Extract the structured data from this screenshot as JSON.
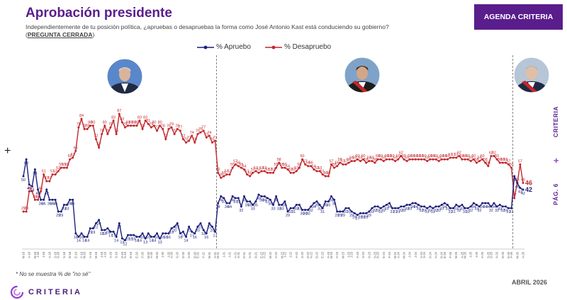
{
  "header": {
    "title": "Aprobación presidente",
    "subtitle": "Independientemente de tu posición política, ¿apruebas o desapruebas la forma como José Antonio Kast está conduciendo su gobierno?",
    "subtitle_tag": "PREGUNTA CERRADA"
  },
  "badge": {
    "label": "AGENDA CRITERIA"
  },
  "side": {
    "page": "PÁG. 6",
    "brand": "CRITERIA"
  },
  "footnote": "* No se muestra % de \"no sé\"",
  "date_label": "ABRIL 2026",
  "logo": {
    "text": "CRITERIA"
  },
  "colors": {
    "aprueba": "#1c1f7a",
    "desaprueba": "#c2272d",
    "brand": "#5a1d8c",
    "divider": "#666666"
  },
  "icons": {
    "left_plus": "plus-icon",
    "logo": "criteria-logo-icon",
    "portraits": [
      "portrait-1-icon",
      "portrait-2-icon",
      "portrait-3-icon"
    ]
  },
  "chart_data": {
    "type": "line",
    "title": "",
    "xlabel": "",
    "ylabel": "",
    "ylim": [
      0,
      100
    ],
    "grid": false,
    "legend_position": "top-center",
    "period_breaks_after_index": [
      66,
      168
    ],
    "series": [
      {
        "name": "% Apruebo",
        "color": "#1c1f7a",
        "values": [
          50,
          60,
          45,
          44,
          54,
          42,
          36,
          36,
          42,
          36,
          36,
          36,
          29,
          29,
          33,
          33,
          36,
          36,
          16,
          14,
          16,
          14,
          14,
          19,
          19,
          22,
          24,
          18,
          18,
          19,
          17,
          17,
          14,
          22,
          13,
          12,
          15,
          15,
          15,
          14,
          14,
          16,
          13,
          16,
          14,
          14,
          16,
          13,
          16,
          16,
          16,
          19,
          20,
          22,
          16,
          17,
          14,
          20,
          17,
          16,
          20,
          22,
          18,
          16,
          22,
          20,
          17,
          34,
          38,
          37,
          34,
          34,
          38,
          37,
          37,
          32,
          38,
          35,
          35,
          33,
          35,
          39,
          38,
          38,
          37,
          36,
          33,
          38,
          33,
          33,
          35,
          29,
          31,
          31,
          33,
          33,
          30,
          30,
          30,
          32,
          34,
          35,
          33,
          31,
          35,
          35,
          38,
          36,
          29,
          29,
          29,
          31,
          31,
          29,
          28,
          27,
          28,
          28,
          28,
          29,
          31,
          32,
          32,
          31,
          32,
          33,
          34,
          31,
          31,
          31,
          32,
          32,
          33,
          33,
          34,
          34,
          33,
          32,
          32,
          31,
          32,
          31,
          32,
          32,
          33,
          34,
          33,
          31,
          31,
          33,
          32,
          33,
          31,
          31,
          32,
          34,
          33,
          32,
          34,
          34,
          34,
          32,
          34,
          32,
          33,
          32,
          32,
          31,
          31,
          50,
          46,
          43,
          42
        ]
      },
      {
        "name": "% Desapruebo",
        "color": "#c2272d",
        "values": [
          29,
          29,
          41,
          41,
          36,
          36,
          41,
          51,
          47,
          47,
          51,
          51,
          53,
          55,
          55,
          55,
          60,
          61,
          65,
          79,
          84,
          78,
          78,
          80,
          80,
          72,
          67,
          75,
          80,
          75,
          79,
          83,
          75,
          87,
          82,
          79,
          80,
          80,
          80,
          80,
          83,
          78,
          83,
          81,
          79,
          80,
          77,
          80,
          78,
          72,
          78,
          79,
          75,
          78,
          77,
          72,
          70,
          71,
          74,
          70,
          75,
          76,
          77,
          73,
          74,
          70,
          71,
          52,
          49,
          50,
          51,
          51,
          55,
          57,
          56,
          55,
          54,
          51,
          50,
          52,
          53,
          52,
          53,
          53,
          52,
          52,
          52,
          55,
          58,
          55,
          55,
          54,
          52,
          52,
          53,
          55,
          60,
          57,
          56,
          56,
          54,
          53,
          53,
          51,
          50,
          50,
          57,
          55,
          56,
          58,
          57,
          57,
          58,
          59,
          59,
          60,
          59,
          60,
          58,
          59,
          59,
          58,
          60,
          60,
          59,
          60,
          60,
          60,
          59,
          60,
          62,
          60,
          59,
          60,
          60,
          60,
          60,
          60,
          60,
          59,
          60,
          60,
          60,
          59,
          60,
          60,
          60,
          61,
          61,
          61,
          62,
          60,
          60,
          60,
          59,
          60,
          58,
          59,
          60,
          58,
          56,
          62,
          62,
          60,
          58,
          58,
          58,
          57,
          55,
          37,
          46,
          57,
          46
        ]
      }
    ],
    "highlighted_labels": {
      "Apruebo": [
        "60",
        "54",
        "42",
        "36",
        "34",
        "33",
        "22",
        "14",
        "16",
        "15",
        "24",
        "21",
        "20",
        "17",
        "39",
        "38",
        "37",
        "35",
        "31",
        "50",
        "42"
      ],
      "Desapruebo": [
        "29",
        "41",
        "51",
        "55",
        "60",
        "65",
        "84",
        "78",
        "87",
        "83",
        "79",
        "80",
        "72",
        "70",
        "52",
        "57",
        "56",
        "62",
        "60",
        "59",
        "61",
        "58",
        "56",
        "46",
        "37"
      ]
    },
    "x_ticks": [
      "M-18",
      "A-18",
      "M-18",
      "J-18",
      "J-18",
      "A-18",
      "S-18",
      "O-18",
      "N-18",
      "D-18",
      "E-19",
      "F-19",
      "M-19",
      "A-19",
      "M-19",
      "J-19",
      "J-19",
      "A-19",
      "S-19",
      "O-19",
      "N-19",
      "D-19",
      "E-20",
      "F-20",
      "M-20",
      "A-20",
      "M-20",
      "J-20",
      "J-20",
      "A-20",
      "S-20",
      "O-20",
      "N-20",
      "D-20",
      "E-21",
      "F-21",
      "M-21",
      "A-21",
      "M-21",
      "J-21",
      "J-21",
      "A-21",
      "S-21",
      "O-21",
      "N-21",
      "D-21",
      "E-22",
      "F-22",
      "M-22",
      "A-22",
      "M-22",
      "J-22",
      "J-22",
      "A-22",
      "S-22",
      "O-22",
      "N-22",
      "D-22",
      "E-23",
      "F-23",
      "M-23",
      "A-23",
      "M-23",
      "J-23",
      "J-23",
      "A-23",
      "S-23",
      "O-23",
      "N-23",
      "D-23",
      "E-24",
      "F-24",
      "M-24",
      "A-24",
      "M-24",
      "J-24",
      "J-24",
      "A-24",
      "S-24",
      "O-24",
      "N-24",
      "D-24",
      "E-25",
      "F-25",
      "M-25",
      "A-25",
      "M-25",
      "J-25",
      "J-25",
      "A-25",
      "S-25",
      "O-25",
      "N-25",
      "D-25",
      "E-26",
      "F-26",
      "M-26",
      "A-26"
    ]
  }
}
